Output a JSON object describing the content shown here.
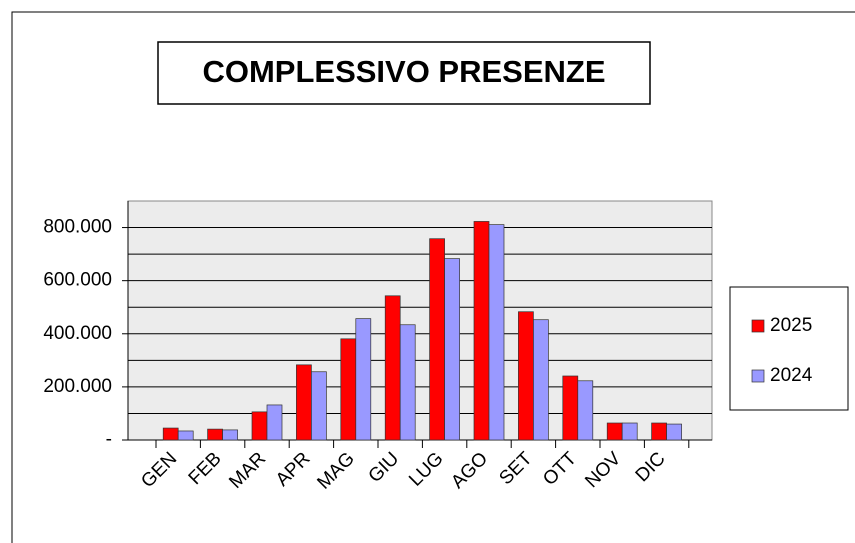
{
  "chart_data": {
    "type": "bar",
    "title": "COMPLESSIVO PRESENZE",
    "categories": [
      "GEN",
      "FEB",
      "MAR",
      "APR",
      "MAG",
      "GIU",
      "LUG",
      "AGO",
      "SET",
      "OTT",
      "NOV",
      "DIC"
    ],
    "series": [
      {
        "name": "2025",
        "color": "#ff0000",
        "values": [
          45000,
          41000,
          106000,
          283000,
          381000,
          543000,
          758000,
          823000,
          483000,
          241000,
          64000,
          64000
        ]
      },
      {
        "name": "2024",
        "color": "#9999ff",
        "values": [
          34000,
          38000,
          132000,
          257000,
          457000,
          434000,
          683000,
          811000,
          453000,
          223000,
          64000,
          60000
        ]
      }
    ],
    "ylim": [
      0,
      900000
    ],
    "yticks": [
      {
        "value": 0,
        "label": "-"
      },
      {
        "value": 200000,
        "label": "200.000"
      },
      {
        "value": 400000,
        "label": "400.000"
      },
      {
        "value": 600000,
        "label": "600.000"
      },
      {
        "value": 800000,
        "label": "800.000"
      }
    ],
    "minor_gridlines": [
      100000,
      300000,
      500000,
      700000
    ],
    "grid": true,
    "legend": "right"
  }
}
